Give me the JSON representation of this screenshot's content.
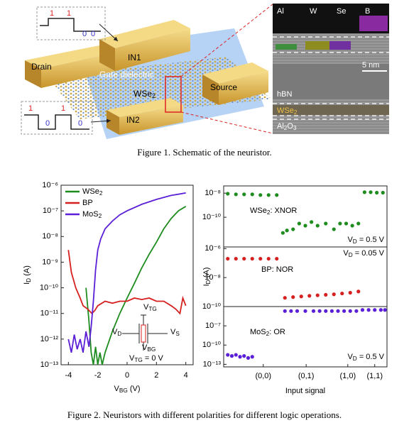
{
  "figure1": {
    "in1_bits": [
      "1",
      "1",
      "0",
      "0"
    ],
    "in2_bits": [
      "1",
      "0",
      "1",
      "0"
    ],
    "labels": {
      "drain": "Drain",
      "in1": "IN1",
      "gate": "Gate dielectric",
      "channel": [
        "WSe",
        "2"
      ],
      "source": "Source",
      "in2": "IN2"
    },
    "tem": {
      "elements": [
        "Al",
        "W",
        "Se",
        "B"
      ],
      "scale": "5 nm",
      "hbn": "hBN",
      "wse2": [
        "WSe",
        "2"
      ],
      "al2o3": [
        "Al",
        "2",
        "O",
        "3"
      ]
    },
    "caption": "Figure 1. Schematic of the neuristor."
  },
  "chart_data": [
    {
      "type": "line",
      "log_y": true,
      "xlabel": [
        "V",
        "BG",
        " (V)"
      ],
      "ylabel": [
        "I",
        "D",
        " (A)"
      ],
      "xlim": [
        -4.5,
        4.5
      ],
      "xticks": [
        -4,
        -2,
        0,
        2,
        4
      ],
      "ylim": [
        1e-13,
        1e-06
      ],
      "yticks": [
        {
          "value": 1e-06,
          "label": "10⁻⁶"
        },
        {
          "value": 1e-07,
          "label": "10⁻⁷"
        },
        {
          "value": 1e-08,
          "label": "10⁻⁸"
        },
        {
          "value": 1e-09,
          "label": "10⁻⁹"
        },
        {
          "value": 1e-10,
          "label": "10⁻¹⁰"
        },
        {
          "value": 1e-11,
          "label": "10⁻¹¹"
        },
        {
          "value": 1e-12,
          "label": "10⁻¹²"
        },
        {
          "value": 1e-13,
          "label": "10⁻¹³"
        }
      ],
      "legend": "upper left",
      "series": [
        {
          "name": [
            "WSe",
            "2"
          ],
          "color": "#1f8c1f",
          "x": [
            -2.8,
            -2.6,
            -2.45,
            -2.3,
            -2.15,
            -2,
            -1.85,
            -1.7,
            -1.5,
            -1,
            -0.5,
            0,
            0.5,
            1,
            1.5,
            2,
            2.5,
            3,
            3.5,
            4
          ],
          "values": [
            1e-10,
            5e-12,
            3e-13,
            1e-13,
            5e-13,
            1e-13,
            3e-13,
            1e-13,
            3e-13,
            2e-12,
            1e-11,
            4e-11,
            1.5e-10,
            6e-10,
            2e-09,
            6e-09,
            2e-08,
            5e-08,
            1e-07,
            1.5e-07
          ]
        },
        {
          "name": "BP",
          "color": "#d62020",
          "x": [
            -4,
            -3.8,
            -3.5,
            -3.2,
            -3,
            -2.7,
            -2.4,
            -2.2,
            -2,
            -1.5,
            -1,
            -0.5,
            0,
            0.5,
            1,
            1.5,
            2,
            2.5,
            3,
            3.3,
            3.6,
            3.8,
            4
          ],
          "values": [
            3e-09,
            4e-10,
            1e-10,
            4e-11,
            2e-11,
            1.5e-11,
            1e-11,
            1.3e-11,
            2e-11,
            3e-11,
            2.5e-11,
            3e-11,
            3e-11,
            4e-11,
            3.5e-11,
            4e-11,
            3e-11,
            3e-11,
            2e-11,
            1.5e-11,
            1e-11,
            4e-11,
            2e-11
          ]
        },
        {
          "name": [
            "MoS",
            "2"
          ],
          "color": "#5a1fd6",
          "x": [
            -4,
            -3.8,
            -3.6,
            -3.4,
            -3.2,
            -3,
            -2.8,
            -2.6,
            -2.45,
            -2.3,
            -2.15,
            -2,
            -1.8,
            -1.5,
            -1,
            -0.5,
            0,
            1,
            2,
            3,
            4
          ],
          "values": [
            1e-12,
            3e-13,
            1.5e-12,
            4e-13,
            1e-12,
            3e-13,
            2e-12,
            5e-13,
            3e-12,
            3e-11,
            5e-10,
            3e-09,
            8e-09,
            2e-08,
            4e-08,
            7e-08,
            1e-07,
            1.8e-07,
            2.8e-07,
            4e-07,
            5e-07
          ]
        }
      ],
      "annotations": [
        [
          "V",
          "TG"
        ],
        [
          "V",
          "D"
        ],
        [
          "V",
          "S"
        ],
        [
          "V",
          "BG"
        ],
        [
          "V",
          "TG",
          " = 0 V"
        ]
      ]
    },
    {
      "type": "scatter",
      "log_y": true,
      "xlim": [
        0,
        4
      ],
      "ylim": [
        3.4e-13,
        4e-08
      ],
      "yticks": [
        {
          "value": 1e-08,
          "label": "10⁻⁸"
        },
        {
          "value": 1e-10,
          "label": "10⁻¹⁰"
        }
      ],
      "series": [
        {
          "name": [
            "WSe",
            "2",
            ": XNOR"
          ],
          "color": "#1f8c1f",
          "x": [
            0.1,
            0.3,
            0.5,
            0.7,
            0.9,
            1.1,
            1.3,
            1.45,
            1.55,
            1.7,
            1.85,
            2.0,
            2.15,
            2.3,
            2.5,
            2.7,
            2.85,
            3.0,
            3.15,
            3.3,
            3.45,
            3.6,
            3.75,
            3.9
          ],
          "values": [
            9e-09,
            8e-09,
            8e-09,
            8e-09,
            7e-09,
            7e-09,
            7e-09,
            5e-12,
            8e-12,
            1e-11,
            3e-11,
            2e-11,
            4e-11,
            2e-11,
            3e-11,
            1e-11,
            3e-11,
            3e-11,
            2e-11,
            3e-11,
            1.2e-08,
            1.2e-08,
            1.1e-08,
            1.1e-08
          ]
        }
      ],
      "annotations": [
        [
          "V",
          "D",
          " = 0.5 V"
        ]
      ]
    },
    {
      "type": "scatter",
      "log_y": true,
      "xlim": [
        0,
        4
      ],
      "ylim": [
        1e-10,
        1.3e-06
      ],
      "yticks": [
        {
          "value": 1e-06,
          "label": "10⁻⁶"
        },
        {
          "value": 1e-08,
          "label": "10⁻⁸"
        },
        {
          "value": 1e-10,
          "label": "10⁻¹⁰"
        }
      ],
      "ylabel": [
        "I",
        "D",
        " (A)"
      ],
      "series": [
        {
          "name": "BP: NOR",
          "color": "#d62020",
          "x": [
            0.1,
            0.3,
            0.5,
            0.7,
            0.9,
            1.1,
            1.3,
            1.5,
            1.7,
            1.9,
            2.1,
            2.3,
            2.5,
            2.7,
            2.9,
            3.1,
            3.3
          ],
          "values": [
            2e-07,
            2e-07,
            2e-07,
            2e-07,
            2e-07,
            2e-07,
            2e-07,
            4e-10,
            4.5e-10,
            5e-10,
            5.5e-10,
            6e-10,
            6.5e-10,
            7e-10,
            8e-10,
            9e-10,
            1.1e-09
          ]
        }
      ],
      "annotations": [
        [
          "V",
          "D",
          " = 0.05 V"
        ]
      ]
    },
    {
      "type": "scatter",
      "log_y": true,
      "xlim": [
        0,
        4
      ],
      "ylim": [
        4e-14,
        0.0001
      ],
      "yticks": [
        {
          "value": 1e-07,
          "label": "10⁻⁷"
        },
        {
          "value": 1e-10,
          "label": "10⁻¹⁰"
        },
        {
          "value": 1e-13,
          "label": "10⁻¹³"
        }
      ],
      "xticks": [
        {
          "value": 0.97,
          "label": "(0,0)"
        },
        {
          "value": 2.02,
          "label": "(0,1)"
        },
        {
          "value": 3.04,
          "label": "(1,0)"
        },
        {
          "value": 3.7,
          "label": "(1,1)"
        }
      ],
      "xlabel": "Input signal",
      "series": [
        {
          "name": [
            "MoS",
            "2",
            ": OR"
          ],
          "color": "#5a1fd6",
          "x": [
            0.1,
            0.2,
            0.3,
            0.4,
            0.5,
            0.6,
            0.7,
            1.5,
            1.65,
            1.8,
            2.0,
            2.2,
            2.35,
            2.5,
            2.65,
            2.8,
            2.95,
            3.1,
            3.25,
            3.4,
            3.55,
            3.7,
            3.85,
            3.95
          ],
          "values": [
            3e-12,
            2e-12,
            3e-12,
            1.5e-12,
            2e-12,
            1e-12,
            1.5e-12,
            2e-05,
            2e-05,
            2e-05,
            2e-05,
            2e-05,
            2e-05,
            2e-05,
            2e-05,
            2e-05,
            2e-05,
            2e-05,
            2e-05,
            3e-05,
            3e-05,
            3e-05,
            3e-05,
            3e-05
          ]
        }
      ],
      "annotations": [
        [
          "V",
          "D",
          " = 0.5 V"
        ]
      ]
    }
  ],
  "figure2": {
    "caption": "Figure 2. Neuristors with different polarities for different logic operations."
  }
}
